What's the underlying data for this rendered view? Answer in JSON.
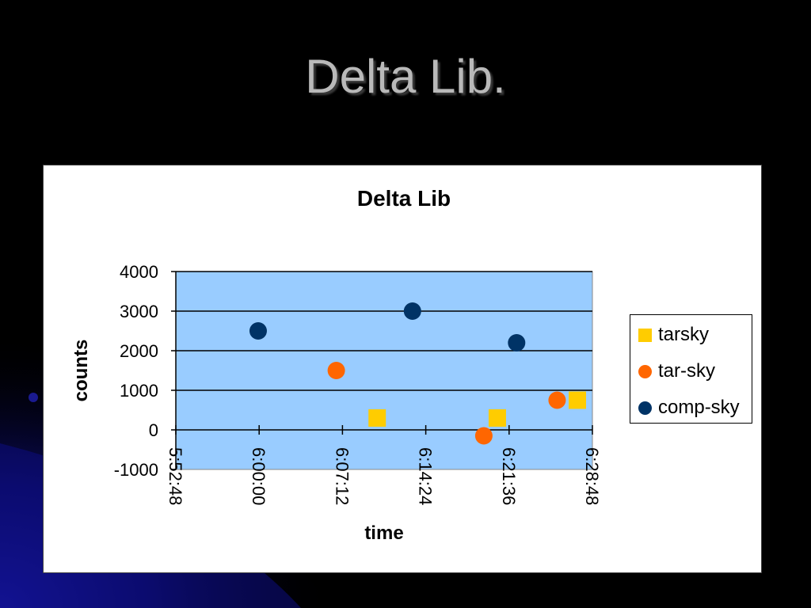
{
  "slide": {
    "title": "Delta Lib."
  },
  "colors": {
    "tarsky": "#FFCC00",
    "tar_sky": "#FF6600",
    "comp_sky": "#003366",
    "plot_bg": "#99CCFF"
  },
  "chart_data": {
    "type": "scatter",
    "title": "Delta Lib",
    "xlabel": "time",
    "ylabel": "counts",
    "ylim": [
      -1000,
      4000
    ],
    "yticks": [
      "4000",
      "3000",
      "2000",
      "1000",
      "0",
      "-1000"
    ],
    "xlim": [
      "5:52:48",
      "6:28:48"
    ],
    "xticks": [
      "5:52:48",
      "6:00:00",
      "6:07:12",
      "6:14:24",
      "6:21:36",
      "6:28:48"
    ],
    "grid": true,
    "legend_position": "right",
    "series": [
      {
        "name": "tarsky",
        "marker": "square",
        "color": "#FFCC00",
        "points": [
          [
            "6:10:12",
            300
          ],
          [
            "6:20:35",
            300
          ],
          [
            "6:27:30",
            750
          ]
        ]
      },
      {
        "name": "tar-sky",
        "marker": "circle",
        "color": "#FF6600",
        "points": [
          [
            "6:06:40",
            1500
          ],
          [
            "6:19:25",
            -150
          ],
          [
            "6:25:45",
            750
          ]
        ]
      },
      {
        "name": "comp-sky",
        "marker": "circle",
        "color": "#003366",
        "points": [
          [
            "5:59:55",
            2500
          ],
          [
            "6:13:15",
            3000
          ],
          [
            "6:22:15",
            2200
          ]
        ]
      }
    ]
  }
}
